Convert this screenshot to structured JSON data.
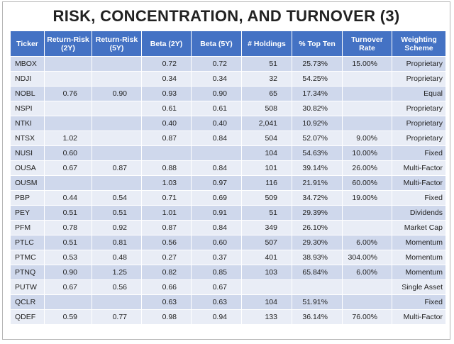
{
  "title": "RISK, CONCENTRATION, AND TURNOVER (3)",
  "header_color": "#4472c4",
  "columns": [
    "Ticker",
    "Return-Risk (2Y)",
    "Return-Risk (5Y)",
    "Beta (2Y)",
    "Beta (5Y)",
    "# Holdings",
    "% Top Ten",
    "Turnover Rate",
    "Weighting Scheme"
  ],
  "rows": [
    [
      "MBOX",
      "",
      "",
      "0.72",
      "0.72",
      "51",
      "25.73%",
      "15.00%",
      "Proprietary"
    ],
    [
      "NDJI",
      "",
      "",
      "0.34",
      "0.34",
      "32",
      "54.25%",
      "",
      "Proprietary"
    ],
    [
      "NOBL",
      "0.76",
      "0.90",
      "0.93",
      "0.90",
      "65",
      "17.34%",
      "",
      "Equal"
    ],
    [
      "NSPI",
      "",
      "",
      "0.61",
      "0.61",
      "508",
      "30.82%",
      "",
      "Proprietary"
    ],
    [
      "NTKI",
      "",
      "",
      "0.40",
      "0.40",
      "2,041",
      "10.92%",
      "",
      "Proprietary"
    ],
    [
      "NTSX",
      "1.02",
      "",
      "0.87",
      "0.84",
      "504",
      "52.07%",
      "9.00%",
      "Proprietary"
    ],
    [
      "NUSI",
      "0.60",
      "",
      "",
      "",
      "104",
      "54.63%",
      "10.00%",
      "Fixed"
    ],
    [
      "OUSA",
      "0.67",
      "0.87",
      "0.88",
      "0.84",
      "101",
      "39.14%",
      "26.00%",
      "Multi-Factor"
    ],
    [
      "OUSM",
      "",
      "",
      "1.03",
      "0.97",
      "116",
      "21.91%",
      "60.00%",
      "Multi-Factor"
    ],
    [
      "PBP",
      "0.44",
      "0.54",
      "0.71",
      "0.69",
      "509",
      "34.72%",
      "19.00%",
      "Fixed"
    ],
    [
      "PEY",
      "0.51",
      "0.51",
      "1.01",
      "0.91",
      "51",
      "29.39%",
      "",
      "Dividends"
    ],
    [
      "PFM",
      "0.78",
      "0.92",
      "0.87",
      "0.84",
      "349",
      "26.10%",
      "",
      "Market Cap"
    ],
    [
      "PTLC",
      "0.51",
      "0.81",
      "0.56",
      "0.60",
      "507",
      "29.30%",
      "6.00%",
      "Momentum"
    ],
    [
      "PTMC",
      "0.53",
      "0.48",
      "0.27",
      "0.37",
      "401",
      "38.93%",
      "304.00%",
      "Momentum"
    ],
    [
      "PTNQ",
      "0.90",
      "1.25",
      "0.82",
      "0.85",
      "103",
      "65.84%",
      "6.00%",
      "Momentum"
    ],
    [
      "PUTW",
      "0.67",
      "0.56",
      "0.66",
      "0.67",
      "",
      "",
      "",
      "Single Asset"
    ],
    [
      "QCLR",
      "",
      "",
      "0.63",
      "0.63",
      "104",
      "51.91%",
      "",
      "Fixed"
    ],
    [
      "QDEF",
      "0.59",
      "0.77",
      "0.98",
      "0.94",
      "133",
      "36.14%",
      "76.00%",
      "Multi-Factor"
    ]
  ]
}
